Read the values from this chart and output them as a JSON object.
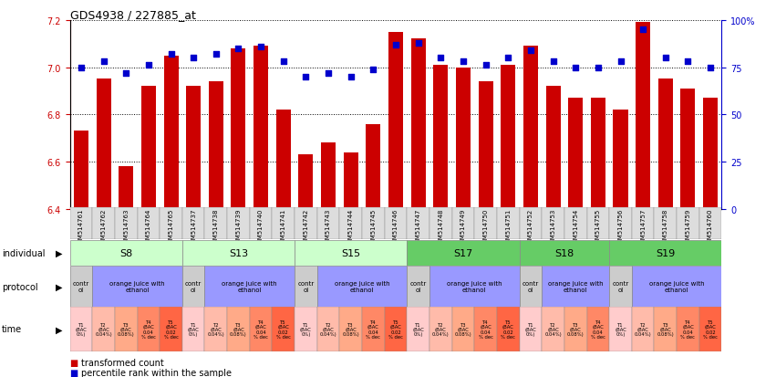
{
  "title": "GDS4938 / 227885_at",
  "gsm_labels": [
    "GSM514761",
    "GSM514762",
    "GSM514763",
    "GSM514764",
    "GSM514765",
    "GSM514737",
    "GSM514738",
    "GSM514739",
    "GSM514740",
    "GSM514741",
    "GSM514742",
    "GSM514743",
    "GSM514744",
    "GSM514745",
    "GSM514746",
    "GSM514747",
    "GSM514748",
    "GSM514749",
    "GSM514750",
    "GSM514751",
    "GSM514752",
    "GSM514753",
    "GSM514754",
    "GSM514755",
    "GSM514756",
    "GSM514757",
    "GSM514758",
    "GSM514759",
    "GSM514760"
  ],
  "bar_values": [
    6.73,
    6.95,
    6.58,
    6.92,
    7.05,
    6.92,
    6.94,
    7.08,
    7.09,
    6.82,
    6.63,
    6.68,
    6.64,
    6.76,
    7.15,
    7.12,
    7.01,
    7.0,
    6.94,
    7.01,
    7.09,
    6.92,
    6.87,
    6.87,
    6.82,
    7.19,
    6.95,
    6.91,
    6.87
  ],
  "dot_values": [
    75,
    78,
    72,
    76,
    82,
    80,
    82,
    85,
    86,
    78,
    70,
    72,
    70,
    74,
    87,
    88,
    80,
    78,
    76,
    80,
    84,
    78,
    75,
    75,
    78,
    95,
    80,
    78,
    75
  ],
  "ylim_left": [
    6.4,
    7.2
  ],
  "ylim_right": [
    0,
    100
  ],
  "bar_color": "#cc0000",
  "dot_color": "#0000cc",
  "bg_color": "#ffffff",
  "individual_groups": [
    {
      "label": "S8",
      "start": 0,
      "end": 5,
      "color": "#ccffcc"
    },
    {
      "label": "S13",
      "start": 5,
      "end": 10,
      "color": "#ccffcc"
    },
    {
      "label": "S15",
      "start": 10,
      "end": 15,
      "color": "#ccffcc"
    },
    {
      "label": "S17",
      "start": 15,
      "end": 20,
      "color": "#66cc66"
    },
    {
      "label": "S18",
      "start": 20,
      "end": 24,
      "color": "#66cc66"
    },
    {
      "label": "S19",
      "start": 24,
      "end": 29,
      "color": "#66cc66"
    }
  ],
  "protocol_groups": [
    {
      "label": "contr\nol",
      "start": 0,
      "end": 1,
      "color": "#cccccc"
    },
    {
      "label": "orange juice with\nethanol",
      "start": 1,
      "end": 5,
      "color": "#9999ff"
    },
    {
      "label": "contr\nol",
      "start": 5,
      "end": 6,
      "color": "#cccccc"
    },
    {
      "label": "orange juice with\nethanol",
      "start": 6,
      "end": 10,
      "color": "#9999ff"
    },
    {
      "label": "contr\nol",
      "start": 10,
      "end": 11,
      "color": "#cccccc"
    },
    {
      "label": "orange juice with\nethanol",
      "start": 11,
      "end": 15,
      "color": "#9999ff"
    },
    {
      "label": "contr\nol",
      "start": 15,
      "end": 16,
      "color": "#cccccc"
    },
    {
      "label": "orange juice with\nethanol",
      "start": 16,
      "end": 20,
      "color": "#9999ff"
    },
    {
      "label": "contr\nol",
      "start": 20,
      "end": 21,
      "color": "#cccccc"
    },
    {
      "label": "orange juice with\nethanol",
      "start": 21,
      "end": 24,
      "color": "#9999ff"
    },
    {
      "label": "contr\nol",
      "start": 24,
      "end": 25,
      "color": "#cccccc"
    },
    {
      "label": "orange juice with\nethanol",
      "start": 25,
      "end": 29,
      "color": "#9999ff"
    }
  ],
  "n_bars": 29,
  "left_yticks": [
    6.4,
    6.6,
    6.8,
    7.0,
    7.2
  ],
  "right_ytick_labels": [
    "0",
    "25",
    "50",
    "75",
    "100%"
  ],
  "time_texts": [
    "T1\n(BAC\n0%)",
    "T2\n(BAC\n0.04%)",
    "T3\n(BAC\n0.08%)",
    "T4\n(BAC\n0.04\n% dec",
    "T5\n(BAC\n0.02\n% dec"
  ],
  "time_colors": [
    "#ffcccc",
    "#ffbbaa",
    "#ffaa88",
    "#ff8866",
    "#ff6644"
  ],
  "time_pattern": [
    [
      0,
      1,
      2,
      3,
      4
    ],
    [
      0,
      1,
      2,
      3,
      4
    ],
    [
      0,
      1,
      2,
      3,
      4
    ],
    [
      0,
      1,
      2,
      3,
      4
    ],
    [
      0,
      1,
      2,
      3
    ],
    [
      0,
      1,
      2,
      3,
      4
    ]
  ]
}
